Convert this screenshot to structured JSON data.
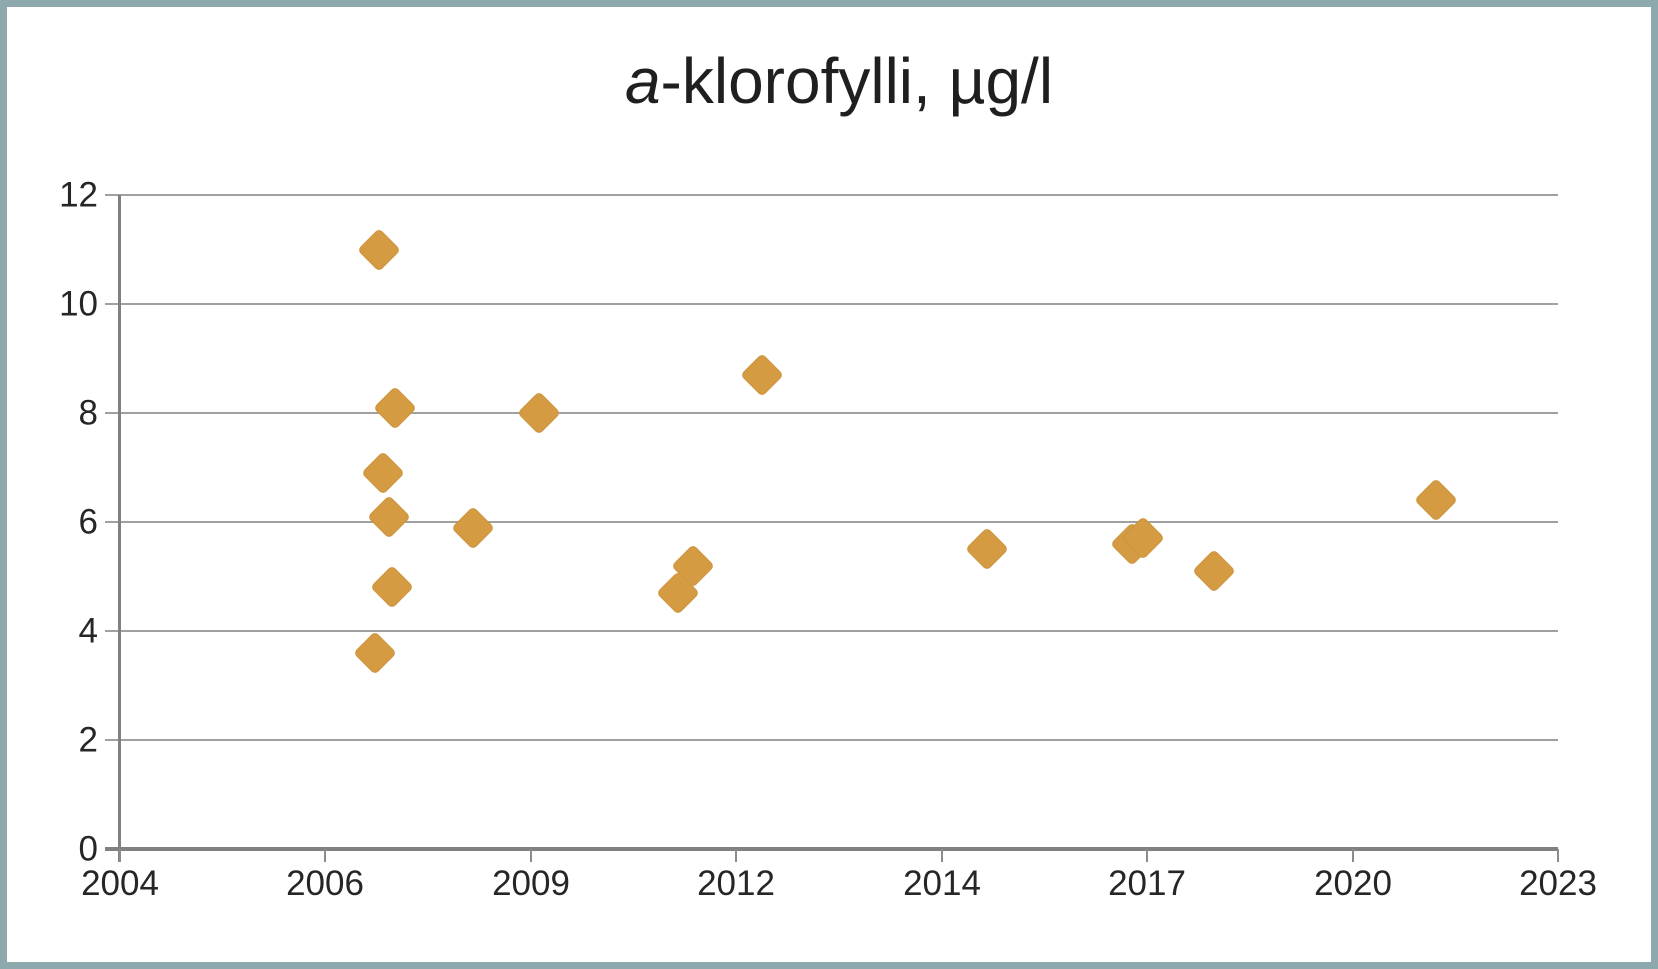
{
  "window": {
    "border_color": "#8da9ae",
    "paper_color": "#ffffff"
  },
  "chart_data": {
    "type": "scatter",
    "title": {
      "full": "a-klorofylli, µg/l",
      "italic": "a",
      "rest": "-klorofylli, µg/l"
    },
    "x_axis": {
      "kind": "date",
      "tick_labels": [
        "2004",
        "2006",
        "2009",
        "2012",
        "2014",
        "2017",
        "2020",
        "2023"
      ],
      "min_year": 2004,
      "max_year": 2023.17,
      "major_unit_days": 1000,
      "note": "ticks evenly spaced every 1000 days, labeled with year"
    },
    "y_axis": {
      "tick_labels": [
        "0",
        "2",
        "4",
        "6",
        "8",
        "10",
        "12"
      ],
      "min": 0,
      "max": 12,
      "step": 2
    },
    "gridlines": {
      "horizontal": true,
      "vertical": false,
      "color": "#a0a0a0"
    },
    "legend": "none",
    "series": [
      {
        "name": "a-klorofylli",
        "marker_shape": "diamond",
        "marker_color": "#d59b43",
        "points": [
          {
            "year": 2007.4,
            "value": 3.6
          },
          {
            "year": 2007.45,
            "value": 11.0
          },
          {
            "year": 2007.5,
            "value": 6.9
          },
          {
            "year": 2007.58,
            "value": 6.1
          },
          {
            "year": 2007.62,
            "value": 4.8
          },
          {
            "year": 2007.66,
            "value": 8.1
          },
          {
            "year": 2008.7,
            "value": 5.9
          },
          {
            "year": 2009.58,
            "value": 8.0
          },
          {
            "year": 2011.44,
            "value": 4.7
          },
          {
            "year": 2011.63,
            "value": 5.2
          },
          {
            "year": 2012.56,
            "value": 8.7
          },
          {
            "year": 2015.56,
            "value": 5.5
          },
          {
            "year": 2017.49,
            "value": 5.6
          },
          {
            "year": 2017.63,
            "value": 5.7
          },
          {
            "year": 2018.58,
            "value": 5.1
          },
          {
            "year": 2021.54,
            "value": 6.4
          }
        ]
      }
    ]
  }
}
